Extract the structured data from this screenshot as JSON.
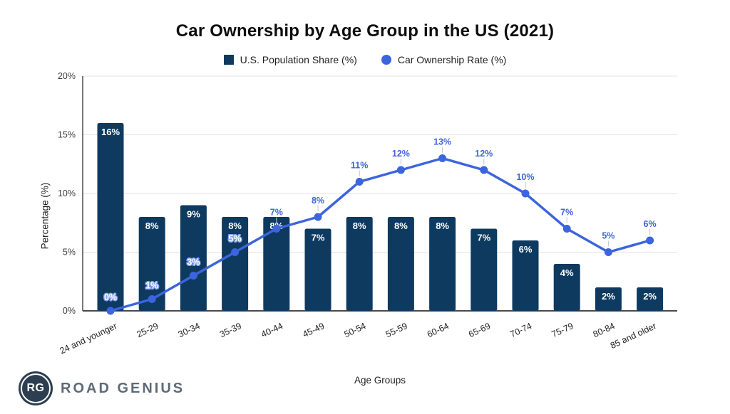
{
  "chart_data": {
    "type": "bar+line",
    "title": "Car Ownership by Age Group in the US (2021)",
    "categories": [
      "24 and younger",
      "25-29",
      "30-34",
      "35-39",
      "40-44",
      "45-49",
      "50-54",
      "55-59",
      "60-64",
      "65-69",
      "70-74",
      "75-79",
      "80-84",
      "85 and older"
    ],
    "series": [
      {
        "name": "U.S. Population Share (%)",
        "type": "bar",
        "color": "#0e3a60",
        "values": [
          16,
          8,
          9,
          8,
          8,
          7,
          8,
          8,
          8,
          7,
          6,
          4,
          2,
          2
        ]
      },
      {
        "name": "Car Ownership Rate (%)",
        "type": "line",
        "color": "#3c64dd",
        "values": [
          0,
          1,
          3,
          5,
          7,
          8,
          11,
          12,
          13,
          12,
          10,
          7,
          5,
          6
        ]
      }
    ],
    "xlabel": "Age Groups",
    "ylabel": "Percentage (%)",
    "ylim": [
      0,
      20
    ],
    "y_ticks": {
      "values": [
        0,
        5,
        10,
        15,
        20
      ],
      "labels": [
        "0%",
        "5%",
        "10%",
        "15%",
        "20%"
      ]
    },
    "grid": true,
    "legend_position": "top"
  },
  "colors": {
    "bar": "#0e3a60",
    "line": "#3c64dd",
    "line_label": "#3f64d9",
    "grid": "#e3e3e3",
    "axis": "#4a4a4a",
    "tick_text": "#3c3c3c",
    "bar_label": "#ffffff",
    "label_outline": "#85a3ef",
    "leader": "#c3c3c3"
  },
  "footer": {
    "logo_monogram": "RG",
    "logo_text": "ROAD GENIUS"
  }
}
